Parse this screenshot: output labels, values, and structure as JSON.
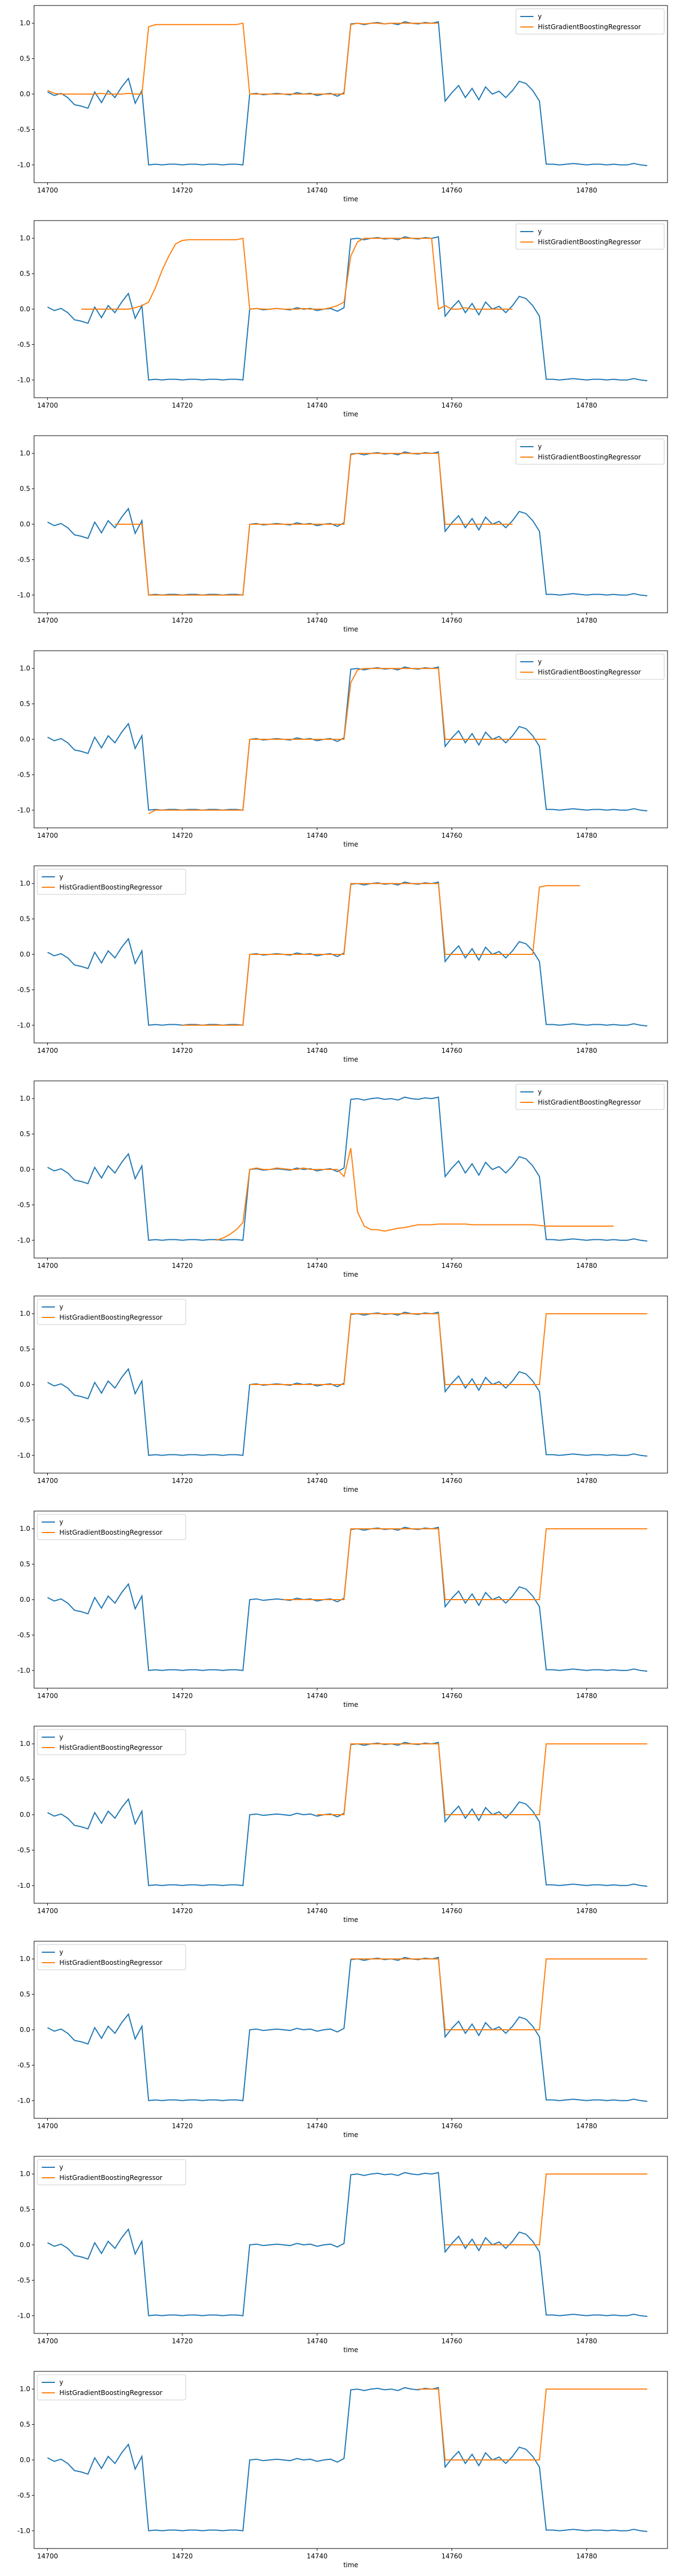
{
  "figure": {
    "colors": {
      "y": "#1f77b4",
      "pred": "#ff7f0e",
      "frame": "#000000",
      "legend_border": "#cccccc"
    }
  },
  "y_series": [
    0.03,
    -0.02,
    0.01,
    -0.05,
    -0.15,
    -0.17,
    -0.2,
    0.03,
    -0.12,
    0.05,
    -0.05,
    0.1,
    0.22,
    -0.13,
    0.05,
    -1.0,
    -0.99,
    -1.0,
    -0.99,
    -0.99,
    -1.0,
    -0.99,
    -0.99,
    -1.0,
    -0.99,
    -0.99,
    -1.0,
    -0.99,
    -0.99,
    -1.0,
    0.0,
    0.01,
    -0.01,
    0.0,
    0.01,
    0.0,
    -0.01,
    0.02,
    0.0,
    0.01,
    -0.02,
    0.0,
    0.01,
    -0.03,
    0.02,
    0.99,
    1.0,
    0.98,
    1.0,
    1.01,
    0.99,
    1.0,
    0.98,
    1.02,
    1.0,
    0.99,
    1.01,
    1.0,
    1.02,
    -0.1,
    0.02,
    0.12,
    -0.05,
    0.08,
    -0.08,
    0.1,
    0.0,
    0.04,
    -0.05,
    0.05,
    0.18,
    0.15,
    0.05,
    -0.1,
    -0.99,
    -0.99,
    -1.0,
    -0.99,
    -0.98,
    -0.99,
    -1.0,
    -0.99,
    -0.99,
    -1.0,
    -0.99,
    -1.0,
    -1.0,
    -0.98,
    -1.0,
    -1.01
  ],
  "chart_data": [
    {
      "type": "line",
      "xlabel": "time",
      "ylim": [
        -1.25,
        1.25
      ],
      "xlim": [
        14698,
        14792
      ],
      "xticks": [
        14700,
        14720,
        14740,
        14760,
        14780
      ],
      "yticks": [
        -1.0,
        -0.5,
        0.0,
        0.5,
        1.0
      ],
      "legend_position": "top-right",
      "series": [
        {
          "name": "y",
          "values_ref": "y_series"
        },
        {
          "name": "HistGradientBoostingRegressor",
          "x_start": 14700,
          "values": [
            0.05,
            0.01,
            0.0,
            0.0,
            0.0,
            0.0,
            0.0,
            0.0,
            0.01,
            0.0,
            0.0,
            0.0,
            0.01,
            0.0,
            0.0,
            0.95,
            0.98,
            0.98,
            0.98,
            0.98,
            0.98,
            0.98,
            0.98,
            0.98,
            0.98,
            0.98,
            0.98,
            0.98,
            0.98,
            1.0,
            0.0,
            0.0,
            0.0,
            0.0,
            0.0,
            0.0,
            0.0,
            0.0,
            0.0,
            0.0,
            0.0,
            0.0,
            0.0,
            0.0,
            0.0,
            0.98,
            1.0,
            0.99,
            1.0,
            1.0,
            0.99,
            1.0,
            1.0,
            1.0,
            1.0,
            1.0,
            1.0,
            1.0,
            1.0
          ]
        }
      ]
    },
    {
      "type": "line",
      "xlabel": "time",
      "ylim": [
        -1.25,
        1.25
      ],
      "xlim": [
        14698,
        14792
      ],
      "xticks": [
        14700,
        14720,
        14740,
        14760,
        14780
      ],
      "yticks": [
        -1.0,
        -0.5,
        0.0,
        0.5,
        1.0
      ],
      "legend_position": "top-right",
      "series": [
        {
          "name": "y",
          "values_ref": "y_series"
        },
        {
          "name": "HistGradientBoostingRegressor",
          "x_start": 14705,
          "values": [
            0.0,
            0.0,
            0.0,
            0.0,
            0.0,
            0.0,
            0.0,
            0.0,
            0.02,
            0.05,
            0.1,
            0.3,
            0.55,
            0.75,
            0.92,
            0.97,
            0.98,
            0.98,
            0.98,
            0.98,
            0.98,
            0.98,
            0.98,
            0.98,
            1.0,
            0.0,
            0.01,
            0.0,
            0.0,
            0.01,
            0.0,
            0.0,
            0.0,
            0.01,
            0.0,
            0.0,
            0.0,
            0.02,
            0.05,
            0.1,
            0.75,
            0.95,
            1.0,
            1.0,
            1.0,
            1.0,
            1.0,
            1.0,
            1.0,
            1.0,
            1.0,
            1.0,
            1.0,
            0.0,
            0.05,
            0.0,
            0.0,
            0.02,
            0.0,
            0.0,
            0.0,
            0.0,
            0.0,
            0.0,
            0.0
          ]
        }
      ]
    },
    {
      "type": "line",
      "xlabel": "time",
      "ylim": [
        -1.25,
        1.25
      ],
      "xlim": [
        14698,
        14792
      ],
      "xticks": [
        14700,
        14720,
        14740,
        14760,
        14780
      ],
      "yticks": [
        -1.0,
        -0.5,
        0.0,
        0.5,
        1.0
      ],
      "legend_position": "top-right",
      "series": [
        {
          "name": "y",
          "values_ref": "y_series"
        },
        {
          "name": "HistGradientBoostingRegressor",
          "x_start": 14710,
          "values": [
            0.0,
            0.0,
            0.0,
            0.0,
            0.0,
            -1.0,
            -1.0,
            -1.0,
            -1.0,
            -1.0,
            -1.0,
            -1.0,
            -1.0,
            -1.0,
            -1.0,
            -1.0,
            -1.0,
            -1.0,
            -1.0,
            -1.0,
            0.0,
            0.0,
            0.0,
            0.0,
            0.0,
            0.0,
            0.0,
            0.0,
            0.0,
            0.0,
            0.0,
            0.0,
            0.0,
            0.0,
            0.0,
            0.98,
            1.0,
            1.0,
            1.0,
            1.0,
            1.0,
            1.0,
            1.0,
            1.0,
            1.0,
            1.0,
            1.0,
            1.0,
            1.0,
            0.0,
            0.0,
            0.0,
            0.0,
            0.0,
            0.0,
            0.0,
            0.0,
            0.0,
            0.0,
            0.0
          ]
        }
      ]
    },
    {
      "type": "line",
      "xlabel": "time",
      "ylim": [
        -1.25,
        1.25
      ],
      "xlim": [
        14698,
        14792
      ],
      "xticks": [
        14700,
        14720,
        14740,
        14760,
        14780
      ],
      "yticks": [
        -1.0,
        -0.5,
        0.0,
        0.5,
        1.0
      ],
      "legend_position": "top-right",
      "series": [
        {
          "name": "y",
          "values_ref": "y_series"
        },
        {
          "name": "HistGradientBoostingRegressor",
          "x_start": 14715,
          "values": [
            -1.05,
            -1.0,
            -1.0,
            -1.0,
            -1.0,
            -1.0,
            -1.0,
            -1.0,
            -1.0,
            -1.0,
            -1.0,
            -1.0,
            -1.0,
            -1.0,
            -1.0,
            0.0,
            0.0,
            0.0,
            0.0,
            0.0,
            0.0,
            0.0,
            0.0,
            0.0,
            0.0,
            0.0,
            0.0,
            0.0,
            0.0,
            0.0,
            0.8,
            0.98,
            1.0,
            1.0,
            1.0,
            1.0,
            1.0,
            1.0,
            1.0,
            1.0,
            1.0,
            1.0,
            1.0,
            1.0,
            0.0,
            0.0,
            0.0,
            0.0,
            0.0,
            0.0,
            0.0,
            0.0,
            0.0,
            0.0,
            0.0,
            0.0,
            0.0,
            0.0,
            0.0,
            0.0
          ]
        }
      ]
    },
    {
      "type": "line",
      "xlabel": "time",
      "ylim": [
        -1.25,
        1.25
      ],
      "xlim": [
        14698,
        14792
      ],
      "xticks": [
        14700,
        14720,
        14740,
        14760,
        14780
      ],
      "yticks": [
        -1.0,
        -0.5,
        0.0,
        0.5,
        1.0
      ],
      "legend_position": "top-left",
      "series": [
        {
          "name": "y",
          "values_ref": "y_series"
        },
        {
          "name": "HistGradientBoostingRegressor",
          "x_start": 14720,
          "values": [
            -1.0,
            -1.0,
            -1.0,
            -1.0,
            -1.0,
            -1.0,
            -1.0,
            -1.0,
            -1.0,
            -1.0,
            0.0,
            0.0,
            0.0,
            0.0,
            0.0,
            0.0,
            0.0,
            0.0,
            0.0,
            0.0,
            0.0,
            0.0,
            0.0,
            0.0,
            0.0,
            1.0,
            1.0,
            1.0,
            1.0,
            1.0,
            1.0,
            1.0,
            1.0,
            1.0,
            1.0,
            1.0,
            1.0,
            1.0,
            1.0,
            0.0,
            0.0,
            0.0,
            0.0,
            0.0,
            0.0,
            0.0,
            0.0,
            0.0,
            0.0,
            0.0,
            0.0,
            0.0,
            0.0,
            0.95,
            0.97,
            0.97,
            0.97,
            0.97,
            0.97,
            0.97
          ]
        }
      ]
    },
    {
      "type": "line",
      "xlabel": "time",
      "ylim": [
        -1.25,
        1.25
      ],
      "xlim": [
        14698,
        14792
      ],
      "xticks": [
        14700,
        14720,
        14740,
        14760,
        14780
      ],
      "yticks": [
        -1.0,
        -0.5,
        0.0,
        0.5,
        1.0
      ],
      "legend_position": "top-right",
      "series": [
        {
          "name": "y",
          "values_ref": "y_series"
        },
        {
          "name": "HistGradientBoostingRegressor",
          "x_start": 14725,
          "values": [
            -1.0,
            -0.97,
            -0.92,
            -0.85,
            -0.75,
            0.0,
            0.02,
            0.0,
            0.0,
            0.02,
            0.01,
            0.0,
            0.0,
            0.02,
            0.0,
            0.0,
            0.0,
            0.0,
            0.0,
            -0.1,
            0.3,
            -0.6,
            -0.8,
            -0.85,
            -0.85,
            -0.87,
            -0.85,
            -0.83,
            -0.82,
            -0.8,
            -0.78,
            -0.78,
            -0.78,
            -0.77,
            -0.77,
            -0.77,
            -0.77,
            -0.77,
            -0.78,
            -0.78,
            -0.78,
            -0.78,
            -0.78,
            -0.78,
            -0.78,
            -0.78,
            -0.78,
            -0.78,
            -0.79,
            -0.8,
            -0.8,
            -0.8,
            -0.8,
            -0.8,
            -0.8,
            -0.8,
            -0.8,
            -0.8,
            -0.8,
            -0.8
          ]
        }
      ]
    },
    {
      "type": "line",
      "xlabel": "time",
      "ylim": [
        -1.25,
        1.25
      ],
      "xlim": [
        14698,
        14792
      ],
      "xticks": [
        14700,
        14720,
        14740,
        14760,
        14780
      ],
      "yticks": [
        -1.0,
        -0.5,
        0.0,
        0.5,
        1.0
      ],
      "legend_position": "top-left",
      "series": [
        {
          "name": "y",
          "values_ref": "y_series"
        },
        {
          "name": "HistGradientBoostingRegressor",
          "x_start": 14730,
          "values": [
            0.0,
            0.0,
            0.0,
            0.0,
            0.0,
            0.0,
            0.0,
            0.0,
            0.0,
            0.0,
            0.0,
            0.0,
            0.0,
            0.0,
            0.0,
            1.0,
            1.0,
            1.0,
            1.0,
            1.0,
            1.0,
            1.0,
            1.0,
            1.0,
            1.0,
            1.0,
            1.0,
            1.0,
            1.0,
            0.0,
            0.0,
            0.0,
            0.0,
            0.0,
            0.0,
            0.0,
            0.0,
            0.0,
            0.0,
            0.0,
            0.0,
            0.0,
            0.0,
            0.0,
            1.0,
            1.0,
            1.0,
            1.0,
            1.0,
            1.0,
            1.0,
            1.0,
            1.0,
            1.0,
            1.0,
            1.0,
            1.0,
            1.0,
            1.0,
            1.0
          ]
        }
      ]
    },
    {
      "type": "line",
      "xlabel": "time",
      "ylim": [
        -1.25,
        1.25
      ],
      "xlim": [
        14698,
        14792
      ],
      "xticks": [
        14700,
        14720,
        14740,
        14760,
        14780
      ],
      "yticks": [
        -1.0,
        -0.5,
        0.0,
        0.5,
        1.0
      ],
      "legend_position": "top-left",
      "series": [
        {
          "name": "y",
          "values_ref": "y_series"
        },
        {
          "name": "HistGradientBoostingRegressor",
          "x_start": 14735,
          "values": [
            0.0,
            0.0,
            0.0,
            0.0,
            0.0,
            0.0,
            0.0,
            0.0,
            0.0,
            0.0,
            1.0,
            1.0,
            1.0,
            1.0,
            1.0,
            1.0,
            1.0,
            1.0,
            1.0,
            1.0,
            1.0,
            1.0,
            1.0,
            1.0,
            0.0,
            0.0,
            0.0,
            0.0,
            0.0,
            0.0,
            0.0,
            0.0,
            0.0,
            0.0,
            0.0,
            0.0,
            0.0,
            0.0,
            0.0,
            1.0,
            1.0,
            1.0,
            1.0,
            1.0,
            1.0,
            1.0,
            1.0,
            1.0,
            1.0,
            1.0,
            1.0,
            1.0,
            1.0,
            1.0,
            1.0
          ]
        }
      ]
    },
    {
      "type": "line",
      "xlabel": "time",
      "ylim": [
        -1.25,
        1.25
      ],
      "xlim": [
        14698,
        14792
      ],
      "xticks": [
        14700,
        14720,
        14740,
        14760,
        14780
      ],
      "yticks": [
        -1.0,
        -0.5,
        0.0,
        0.5,
        1.0
      ],
      "legend_position": "top-left",
      "series": [
        {
          "name": "y",
          "values_ref": "y_series"
        },
        {
          "name": "HistGradientBoostingRegressor",
          "x_start": 14740,
          "values": [
            0.0,
            0.0,
            0.0,
            0.0,
            0.0,
            1.0,
            1.0,
            1.0,
            1.0,
            1.0,
            1.0,
            1.0,
            1.0,
            1.0,
            1.0,
            1.0,
            1.0,
            1.0,
            1.0,
            0.0,
            0.0,
            0.0,
            0.0,
            0.0,
            0.0,
            0.0,
            0.0,
            0.0,
            0.0,
            0.0,
            0.0,
            0.0,
            0.0,
            0.0,
            1.0,
            1.0,
            1.0,
            1.0,
            1.0,
            1.0,
            1.0,
            1.0,
            1.0,
            1.0,
            1.0,
            1.0,
            1.0,
            1.0,
            1.0,
            1.0
          ]
        }
      ]
    },
    {
      "type": "line",
      "xlabel": "time",
      "ylim": [
        -1.25,
        1.25
      ],
      "xlim": [
        14698,
        14792
      ],
      "xticks": [
        14700,
        14720,
        14740,
        14760,
        14780
      ],
      "yticks": [
        -1.0,
        -0.5,
        0.0,
        0.5,
        1.0
      ],
      "legend_position": "top-left",
      "series": [
        {
          "name": "y",
          "values_ref": "y_series"
        },
        {
          "name": "HistGradientBoostingRegressor",
          "x_start": 14745,
          "values": [
            1.0,
            1.0,
            1.0,
            1.0,
            1.0,
            1.0,
            1.0,
            1.0,
            1.0,
            1.0,
            1.0,
            1.0,
            1.0,
            1.0,
            0.0,
            0.0,
            0.0,
            0.0,
            0.0,
            0.0,
            0.0,
            0.0,
            0.0,
            0.0,
            0.0,
            0.0,
            0.0,
            0.0,
            0.0,
            1.0,
            1.0,
            1.0,
            1.0,
            1.0,
            1.0,
            1.0,
            1.0,
            1.0,
            1.0,
            1.0,
            1.0,
            1.0,
            1.0,
            1.0,
            1.0
          ]
        }
      ]
    },
    {
      "type": "line",
      "xlabel": "time",
      "ylim": [
        -1.25,
        1.25
      ],
      "xlim": [
        14698,
        14792
      ],
      "xticks": [
        14700,
        14720,
        14740,
        14760,
        14780
      ],
      "yticks": [
        -1.0,
        -0.5,
        0.0,
        0.5,
        1.0
      ],
      "legend_position": "top-left",
      "series": [
        {
          "name": "y",
          "values_ref": "y_series"
        },
        {
          "name": "HistGradientBoostingRegressor",
          "x_start": 14759,
          "values": [
            0.0,
            0.0,
            0.0,
            0.0,
            0.0,
            0.0,
            0.0,
            0.0,
            0.0,
            0.0,
            0.0,
            0.0,
            0.0,
            0.0,
            0.0,
            1.0,
            1.0,
            1.0,
            1.0,
            1.0,
            1.0,
            1.0,
            1.0,
            1.0,
            1.0,
            1.0,
            1.0,
            1.0,
            1.0,
            1.0,
            1.0
          ]
        }
      ]
    },
    {
      "type": "line",
      "xlabel": "time",
      "ylim": [
        -1.25,
        1.25
      ],
      "xlim": [
        14698,
        14792
      ],
      "xticks": [
        14700,
        14720,
        14740,
        14760,
        14780
      ],
      "yticks": [
        -1.0,
        -0.5,
        0.0,
        0.5,
        1.0
      ],
      "legend_position": "top-left",
      "series": [
        {
          "name": "y",
          "values_ref": "y_series"
        },
        {
          "name": "HistGradientBoostingRegressor",
          "x_start": 14755,
          "values": [
            1.0,
            1.0,
            1.0,
            1.0,
            0.0,
            0.0,
            0.0,
            0.0,
            0.0,
            0.0,
            0.0,
            0.0,
            0.0,
            0.0,
            0.0,
            0.0,
            0.0,
            0.0,
            0.0,
            1.0,
            1.0,
            1.0,
            1.0,
            1.0,
            1.0,
            1.0,
            1.0,
            1.0,
            1.0,
            1.0,
            1.0,
            1.0,
            1.0,
            1.0,
            1.0
          ]
        }
      ]
    }
  ]
}
